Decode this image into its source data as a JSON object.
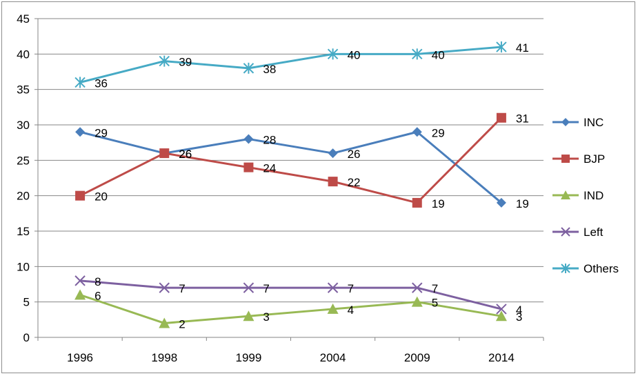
{
  "chart_data": {
    "type": "line",
    "categories": [
      "1996",
      "1998",
      "1999",
      "2004",
      "2009",
      "2014"
    ],
    "ylim": [
      0,
      45
    ],
    "yticks": [
      0,
      5,
      10,
      15,
      20,
      25,
      30,
      35,
      40,
      45
    ],
    "grid": true,
    "legend_position": "right",
    "series": [
      {
        "name": "INC",
        "values": [
          29,
          26,
          28,
          26,
          29,
          19
        ],
        "color": "#4a7ebb",
        "marker": "diamond"
      },
      {
        "name": "BJP",
        "values": [
          20,
          26,
          24,
          22,
          19,
          31
        ],
        "color": "#be4b48",
        "marker": "square"
      },
      {
        "name": "IND",
        "values": [
          6,
          2,
          3,
          4,
          5,
          3
        ],
        "color": "#98b954",
        "marker": "triangle"
      },
      {
        "name": "Left",
        "values": [
          8,
          7,
          7,
          7,
          7,
          4
        ],
        "color": "#7d60a0",
        "marker": "x"
      },
      {
        "name": "Others",
        "values": [
          36,
          39,
          38,
          40,
          40,
          41
        ],
        "color": "#46aac5",
        "marker": "star"
      }
    ]
  }
}
